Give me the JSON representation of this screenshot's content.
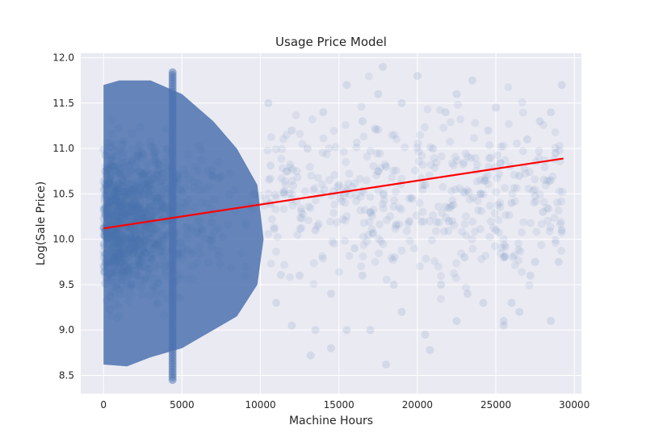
{
  "chart_data": {
    "type": "scatter",
    "title": "Usage Price Model",
    "xlabel": "Machine Hours",
    "ylabel": "Log(Sale Price)",
    "xlim": [
      -1450,
      30450
    ],
    "ylim": [
      8.3,
      12.05
    ],
    "xticks": [
      0,
      5000,
      10000,
      15000,
      20000,
      25000,
      30000
    ],
    "yticks": [
      8.5,
      9.0,
      9.5,
      10.0,
      10.5,
      11.0,
      11.5,
      12.0
    ],
    "xtick_labels": [
      "0",
      "5000",
      "10000",
      "15000",
      "20000",
      "25000",
      "30000"
    ],
    "ytick_labels": [
      "8.5",
      "9.0",
      "9.5",
      "10.0",
      "10.5",
      "11.0",
      "11.5",
      "12.0"
    ],
    "grid": true,
    "background_color": "#EAEAF2",
    "series": [
      {
        "kind": "scatter",
        "color": "#4C72B0",
        "alpha": 0.12,
        "description_of_distribution": {
          "dense_region_x": [
            0,
            10000
          ],
          "dense_region_y": [
            8.6,
            11.8
          ],
          "sparse_region_x": [
            10000,
            29500
          ],
          "vertical_column_x": 4400,
          "vertical_column_y": [
            8.45,
            11.85
          ]
        },
        "points": [
          [
            12000,
            9.05
          ],
          [
            13500,
            9.0
          ],
          [
            14500,
            8.8
          ],
          [
            13200,
            8.72
          ],
          [
            15500,
            9.0
          ],
          [
            16500,
            9.6
          ],
          [
            17000,
            9.0
          ],
          [
            18000,
            8.62
          ],
          [
            20500,
            8.95
          ],
          [
            20800,
            8.78
          ],
          [
            22500,
            9.1
          ],
          [
            23200,
            9.4
          ],
          [
            24200,
            9.3
          ],
          [
            25500,
            9.05
          ],
          [
            25500,
            9.1
          ],
          [
            26000,
            9.3
          ],
          [
            27200,
            9.6
          ],
          [
            28500,
            9.1
          ],
          [
            29000,
            9.75
          ],
          [
            29200,
            10.1
          ],
          [
            28800,
            10.95
          ],
          [
            29200,
            11.7
          ],
          [
            28500,
            11.4
          ],
          [
            27800,
            11.3
          ],
          [
            27000,
            11.1
          ],
          [
            26500,
            10.7
          ],
          [
            26000,
            10.4
          ],
          [
            25500,
            9.8
          ],
          [
            25000,
            10.1
          ],
          [
            24500,
            11.2
          ],
          [
            23500,
            11.75
          ],
          [
            22500,
            11.6
          ],
          [
            21800,
            11.4
          ],
          [
            21000,
            11.0
          ],
          [
            20500,
            10.6
          ],
          [
            20000,
            11.8
          ],
          [
            19500,
            10.2
          ],
          [
            19000,
            11.5
          ],
          [
            18500,
            9.5
          ],
          [
            18000,
            10.8
          ],
          [
            17500,
            11.6
          ],
          [
            17000,
            10.3
          ],
          [
            16500,
            11.3
          ],
          [
            16000,
            9.9
          ],
          [
            15500,
            11.7
          ],
          [
            15000,
            10.6
          ],
          [
            14500,
            9.4
          ],
          [
            14000,
            11.4
          ],
          [
            13500,
            10.1
          ],
          [
            13000,
            11.0
          ],
          [
            12500,
            9.6
          ],
          [
            12000,
            11.2
          ],
          [
            11500,
            10.5
          ],
          [
            11000,
            9.3
          ],
          [
            10500,
            11.5
          ],
          [
            22000,
            10.2
          ],
          [
            23000,
            9.8
          ],
          [
            24000,
            10.5
          ],
          [
            25000,
            11.45
          ],
          [
            26500,
            9.2
          ],
          [
            27500,
            9.75
          ],
          [
            28000,
            10.3
          ],
          [
            21500,
            9.5
          ],
          [
            19000,
            9.2
          ],
          [
            17800,
            11.9
          ]
        ]
      },
      {
        "kind": "line",
        "color": "#FF0000",
        "x": [
          0,
          29300
        ],
        "y": [
          10.12,
          10.89
        ]
      }
    ]
  }
}
